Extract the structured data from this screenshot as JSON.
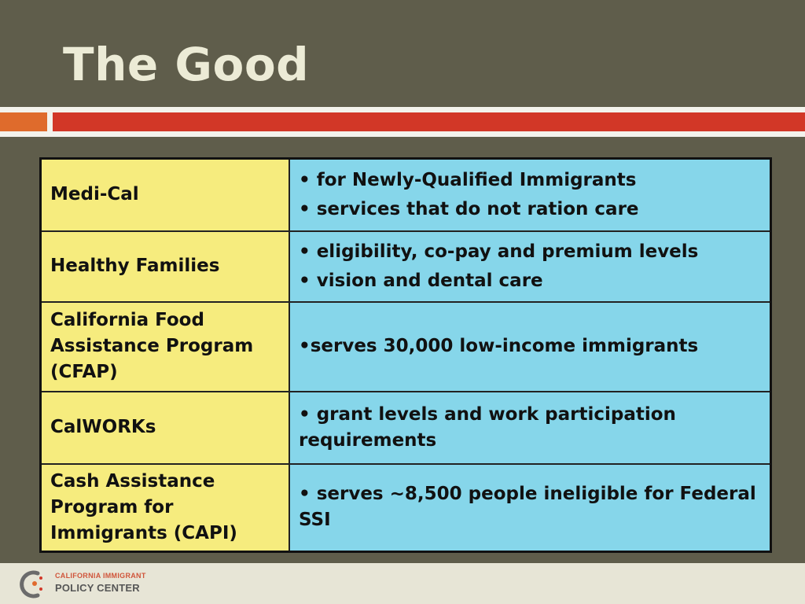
{
  "slide": {
    "title": "The Good"
  },
  "table": {
    "rows": [
      {
        "program": "Medi-Cal",
        "bullets": [
          "• for Newly-Qualified Immigrants",
          "• services that do not ration care"
        ]
      },
      {
        "program": "Healthy Families",
        "bullets": [
          "• eligibility, co-pay and premium levels",
          "• vision and dental care"
        ]
      },
      {
        "program": "California Food Assistance Program (CFAP)",
        "bullets": [
          "•serves 30,000 low-income immigrants"
        ]
      },
      {
        "program": "CalWORKs",
        "bullets": [
          "• grant levels and work participation requirements"
        ]
      },
      {
        "program": "Cash Assistance Program for Immigrants (CAPI)",
        "bullets": [
          "• serves  ~8,500 people ineligible for Federal SSI"
        ]
      }
    ]
  },
  "footer": {
    "logo": {
      "line1": "CALIFORNIA IMMIGRANT",
      "line2": "POLICY CENTER",
      "icon": "policy-center-logo-icon"
    }
  },
  "colors": {
    "background": "#5f5d4b",
    "title": "#ecebd6",
    "accent_orange": "#df6b2c",
    "accent_red": "#d23727",
    "left_cell": "#f6ec7e",
    "right_cell": "#86d6ea"
  }
}
